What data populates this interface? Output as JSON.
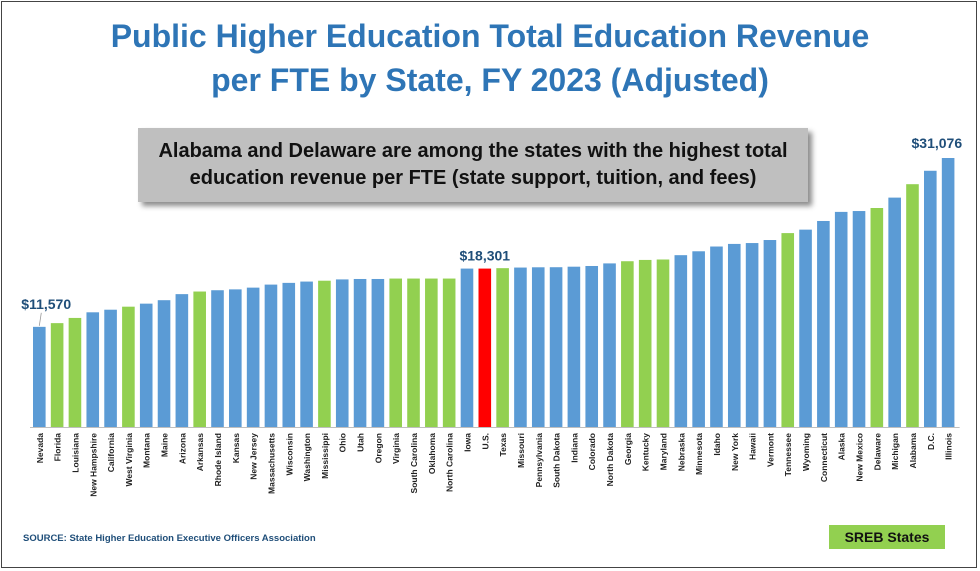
{
  "title_line1": "Public Higher Education Total Education Revenue",
  "title_line2": "per FTE by State, FY 2023 (Adjusted)",
  "callout": "Alabama and Delaware are among the states with the highest total education revenue per FTE (state support, tuition, and fees)",
  "source": "SOURCE: State Higher Education Executive Officers Association",
  "legend_label": "SREB States",
  "colors": {
    "non_sreb": "#5B9BD5",
    "sreb": "#92D050",
    "us": "#FF0000",
    "label": "#1F4E79"
  },
  "chart_data": {
    "type": "bar",
    "title": "Public Higher Education Total Education Revenue per FTE by State, FY 2023 (Adjusted)",
    "categories": [
      "Nevada",
      "Florida",
      "Louisiana",
      "New Hampshire",
      "California",
      "West Virginia",
      "Montana",
      "Maine",
      "Arizona",
      "Arkansas",
      "Rhode Island",
      "Kansas",
      "New Jersey",
      "Massachusetts",
      "Wisconsin",
      "Washington",
      "Mississippi",
      "Ohio",
      "Utah",
      "Oregon",
      "Virginia",
      "South Carolina",
      "Oklahoma",
      "North Carolina",
      "Iowa",
      "U.S.",
      "Texas",
      "Missouri",
      "Pennsylvania",
      "South Dakota",
      "Indiana",
      "Colorado",
      "North Dakota",
      "Georgia",
      "Kentucky",
      "Maryland",
      "Nebraska",
      "Minnesota",
      "Idaho",
      "New York",
      "Hawaii",
      "Vermont",
      "Tennessee",
      "Wyoming",
      "Connecticut",
      "Alaska",
      "New Mexico",
      "Delaware",
      "Michigan",
      "Alabama",
      "D.C.",
      "Illinois"
    ],
    "values": [
      11570,
      12000,
      12600,
      13250,
      13550,
      13900,
      14250,
      14650,
      15350,
      15650,
      15800,
      15900,
      16100,
      16450,
      16650,
      16800,
      16900,
      17050,
      17100,
      17100,
      17150,
      17150,
      17150,
      17150,
      18301,
      18301,
      18350,
      18420,
      18450,
      18460,
      18520,
      18600,
      18900,
      19150,
      19300,
      19350,
      19850,
      20300,
      20850,
      21150,
      21250,
      21600,
      22400,
      22800,
      23800,
      24850,
      24950,
      25300,
      26500,
      28050,
      29600,
      31076
    ],
    "group": [
      "non-SREB",
      "SREB",
      "SREB",
      "non-SREB",
      "non-SREB",
      "SREB",
      "non-SREB",
      "non-SREB",
      "non-SREB",
      "SREB",
      "non-SREB",
      "non-SREB",
      "non-SREB",
      "non-SREB",
      "non-SREB",
      "non-SREB",
      "SREB",
      "non-SREB",
      "non-SREB",
      "non-SREB",
      "SREB",
      "SREB",
      "SREB",
      "SREB",
      "non-SREB",
      "U.S.",
      "SREB",
      "non-SREB",
      "non-SREB",
      "non-SREB",
      "non-SREB",
      "non-SREB",
      "non-SREB",
      "SREB",
      "SREB",
      "SREB",
      "non-SREB",
      "non-SREB",
      "non-SREB",
      "non-SREB",
      "non-SREB",
      "non-SREB",
      "SREB",
      "non-SREB",
      "non-SREB",
      "non-SREB",
      "non-SREB",
      "SREB",
      "non-SREB",
      "SREB",
      "non-SREB",
      "non-SREB"
    ],
    "data_labels": [
      {
        "category": "Nevada",
        "text": "$11,570"
      },
      {
        "category": "U.S.",
        "text": "$18,301"
      },
      {
        "category": "Illinois",
        "text": "$31,076"
      }
    ],
    "ylim": [
      0,
      32000
    ],
    "grid": false,
    "legend": "bottom-right"
  }
}
